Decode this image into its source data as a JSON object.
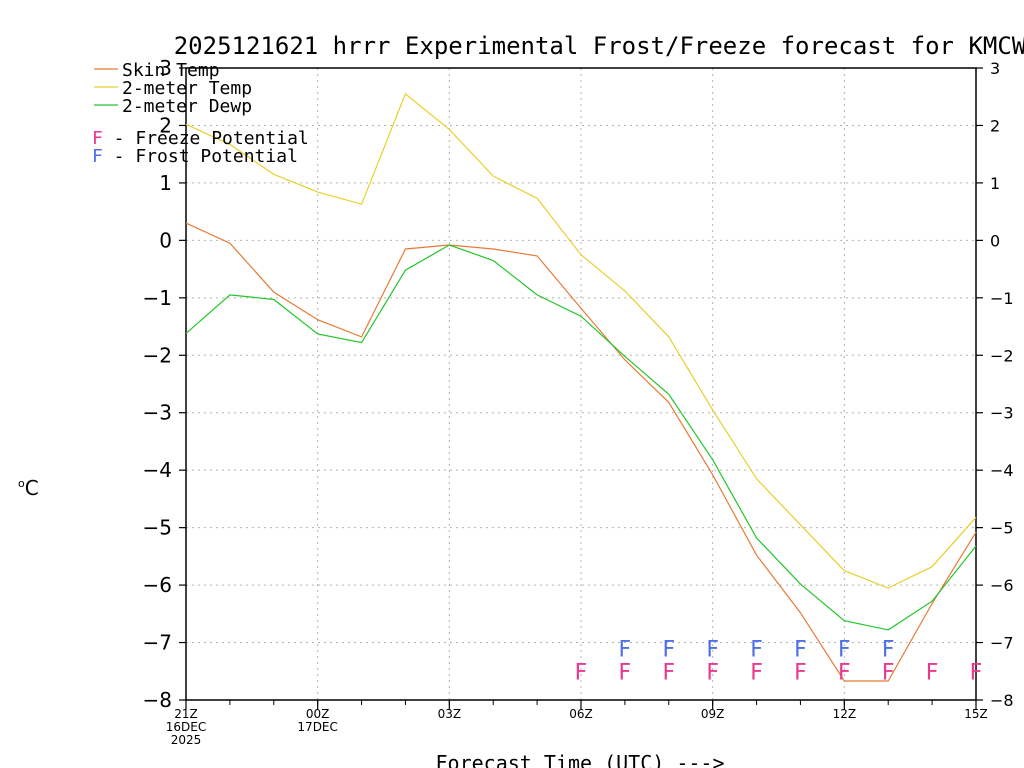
{
  "chart_data": {
    "type": "line",
    "title": "2025121621 hrrr Experimental Frost/Freeze forecast for KMCW",
    "ylabel_unit": "C",
    "ylabel_degree": "o",
    "xlabel": "Forecast Time (UTC) --->",
    "ylim": [
      -8,
      3
    ],
    "yticks": [
      3,
      2,
      1,
      0,
      -1,
      -2,
      -3,
      -4,
      -5,
      -6,
      -7,
      -8
    ],
    "x_hours": [
      0,
      1,
      2,
      3,
      4,
      5,
      6,
      7,
      8,
      9,
      10,
      11,
      12,
      13,
      14,
      15,
      16,
      17,
      18
    ],
    "x_tick_labels": [
      {
        "hour": 0,
        "lines": [
          "21Z",
          "16DEC",
          "2025"
        ]
      },
      {
        "hour": 3,
        "lines": [
          "00Z",
          "17DEC"
        ]
      },
      {
        "hour": 6,
        "lines": [
          "03Z"
        ]
      },
      {
        "hour": 9,
        "lines": [
          "06Z"
        ]
      },
      {
        "hour": 12,
        "lines": [
          "09Z"
        ]
      },
      {
        "hour": 15,
        "lines": [
          "12Z"
        ]
      },
      {
        "hour": 18,
        "lines": [
          "15Z"
        ]
      }
    ],
    "series": [
      {
        "name": "Skin Temp",
        "color": "#e87a35",
        "values": [
          0.3,
          -0.05,
          -0.9,
          -1.38,
          -1.68,
          -0.15,
          -0.08,
          -0.15,
          -0.27,
          -1.18,
          -2.08,
          -2.82,
          -4.08,
          -5.48,
          -6.48,
          -7.67,
          -7.67,
          -6.32,
          -5.08
        ]
      },
      {
        "name": "2-meter Temp",
        "color": "#e8cf2e",
        "values": [
          2.02,
          1.67,
          1.15,
          0.84,
          0.63,
          2.55,
          1.93,
          1.12,
          0.73,
          -0.25,
          -0.88,
          -1.68,
          -2.95,
          -4.15,
          -4.95,
          -5.75,
          -6.05,
          -5.68,
          -4.82
        ]
      },
      {
        "name": "2-meter Dewp",
        "color": "#22c62a",
        "values": [
          -1.62,
          -0.95,
          -1.03,
          -1.63,
          -1.78,
          -0.52,
          -0.08,
          -0.35,
          -0.95,
          -1.32,
          -2.02,
          -2.68,
          -3.82,
          -5.18,
          -5.98,
          -6.62,
          -6.78,
          -6.28,
          -5.32
        ]
      }
    ],
    "freeze_potential": {
      "label": "F - Freeze Potential",
      "marker": "F",
      "color": "#e8398f",
      "y": -7.5,
      "hours": [
        9,
        10,
        11,
        12,
        13,
        14,
        15,
        16,
        17,
        18
      ]
    },
    "frost_potential": {
      "label": "F - Frost Potential",
      "marker": "F",
      "color": "#4f6fe8",
      "y": -7.1,
      "hours": [
        10,
        11,
        12,
        13,
        14,
        15,
        16
      ]
    }
  }
}
